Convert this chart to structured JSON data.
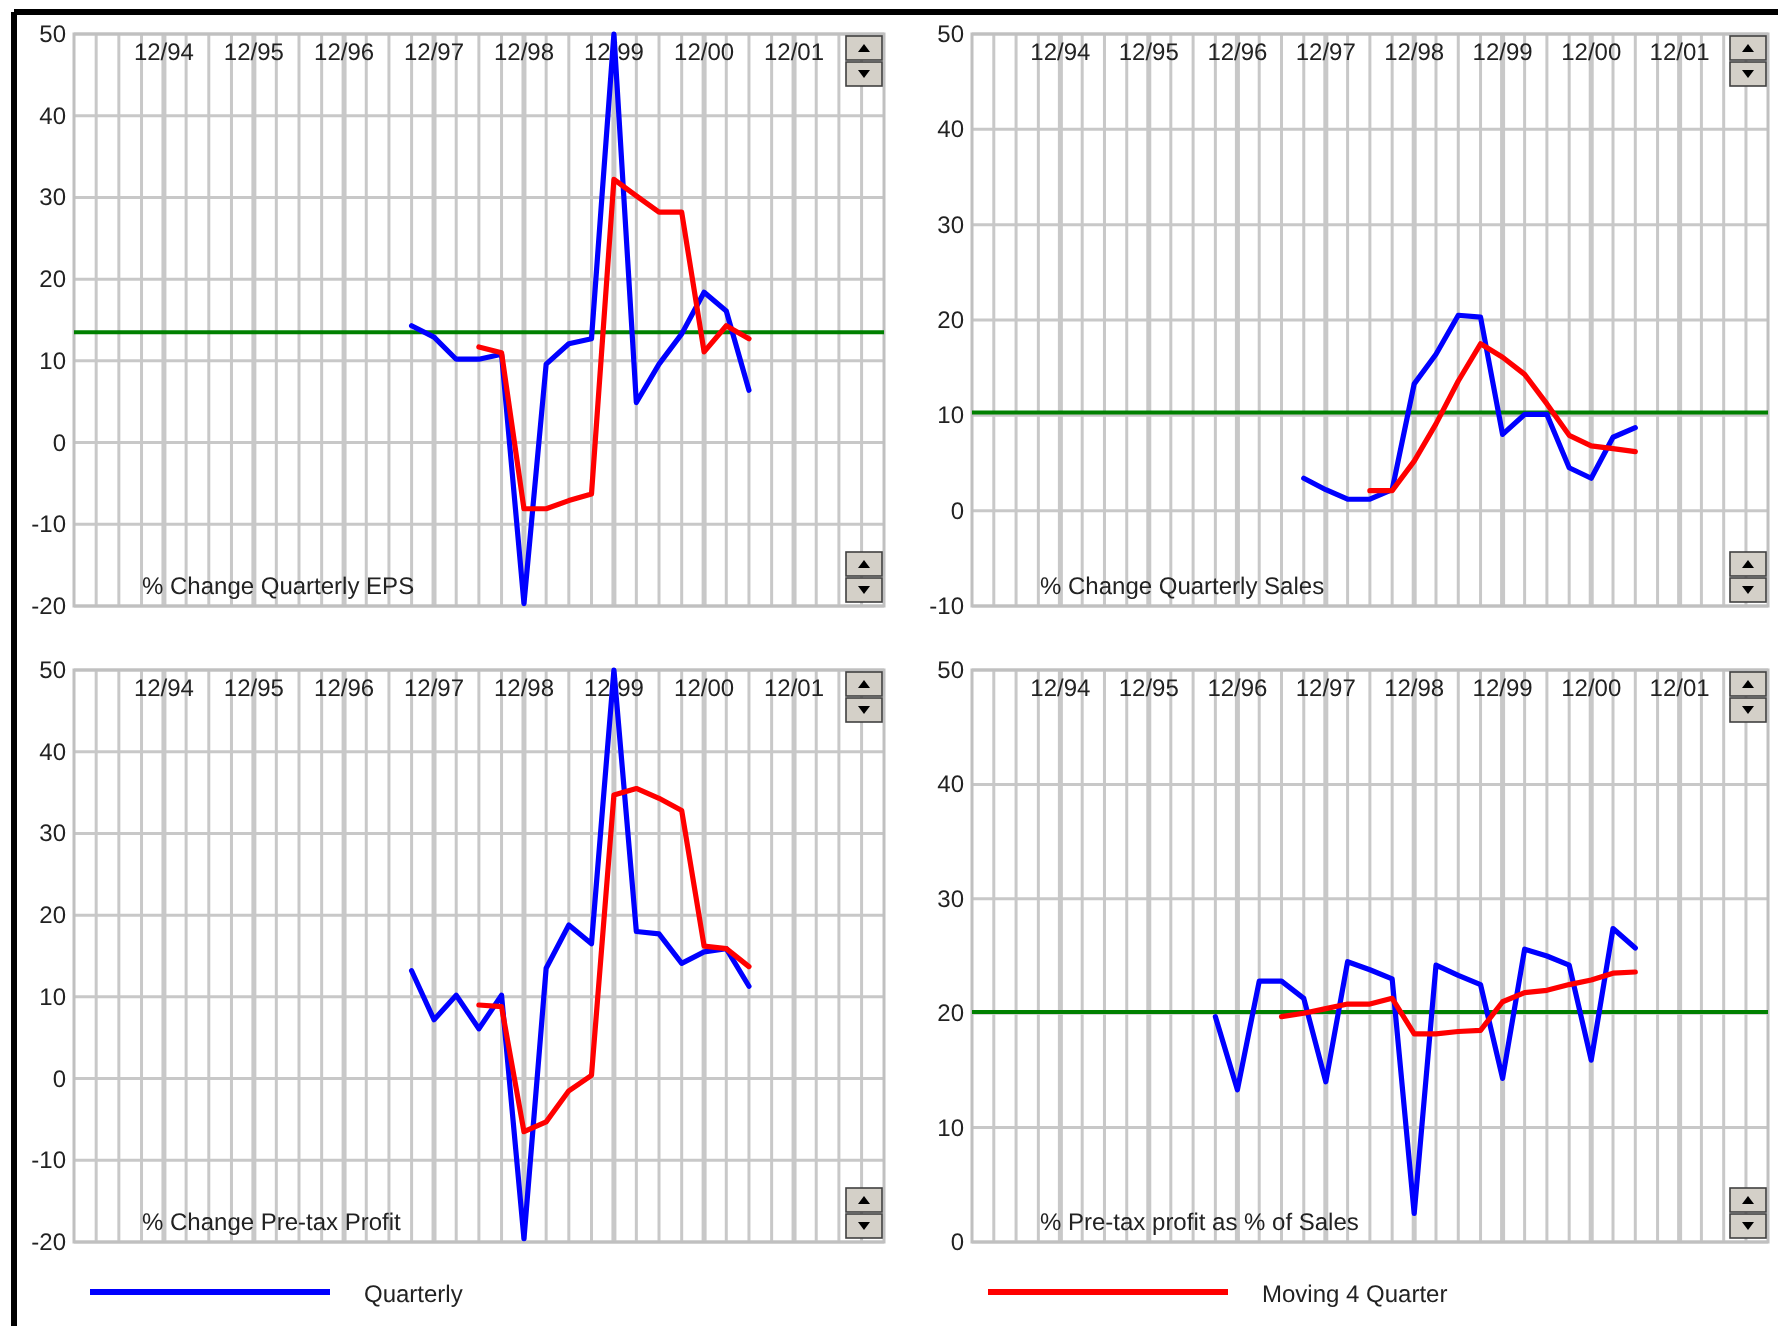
{
  "chart_data": [
    {
      "type": "line",
      "title": "% Change Quarterly EPS",
      "xlim": [
        "1993-12",
        "2002-12"
      ],
      "ylim": [
        -20,
        50
      ],
      "yticks": [
        -20,
        -10,
        0,
        10,
        20,
        30,
        40,
        50
      ],
      "grid": true,
      "xticks": [
        {
          "value": "1994-03",
          "label": null
        },
        {
          "value": "1994-06",
          "label": null
        },
        {
          "value": "1994-09",
          "label": null
        },
        {
          "value": "1994-12",
          "label": "12/94"
        },
        {
          "value": "1995-03",
          "label": null
        },
        {
          "value": "1995-06",
          "label": null
        },
        {
          "value": "1995-09",
          "label": null
        },
        {
          "value": "1995-12",
          "label": "12/95"
        },
        {
          "value": "1996-03",
          "label": null
        },
        {
          "value": "1996-06",
          "label": null
        },
        {
          "value": "1996-09",
          "label": null
        },
        {
          "value": "1996-12",
          "label": "12/96"
        },
        {
          "value": "1997-03",
          "label": null
        },
        {
          "value": "1997-06",
          "label": null
        },
        {
          "value": "1997-09",
          "label": null
        },
        {
          "value": "1997-12",
          "label": "12/97"
        },
        {
          "value": "1998-03",
          "label": null
        },
        {
          "value": "1998-06",
          "label": null
        },
        {
          "value": "1998-09",
          "label": null
        },
        {
          "value": "1998-12",
          "label": "12/98"
        },
        {
          "value": "1999-03",
          "label": null
        },
        {
          "value": "1999-06",
          "label": null
        },
        {
          "value": "1999-09",
          "label": null
        },
        {
          "value": "1999-12",
          "label": "12/99"
        },
        {
          "value": "2000-03",
          "label": null
        },
        {
          "value": "2000-06",
          "label": null
        },
        {
          "value": "2000-09",
          "label": null
        },
        {
          "value": "2000-12",
          "label": "12/00"
        },
        {
          "value": "2001-03",
          "label": null
        },
        {
          "value": "2001-06",
          "label": null
        },
        {
          "value": "2001-09",
          "label": null
        },
        {
          "value": "2001-12",
          "label": "12/01"
        },
        {
          "value": "2002-03",
          "label": null
        },
        {
          "value": "2002-06",
          "label": null
        },
        {
          "value": "2002-09",
          "label": null
        }
      ],
      "ref_lines": [
        {
          "axis": "y",
          "value": 13.5,
          "color": "#008000"
        }
      ],
      "series": [
        {
          "color": "#0000ff",
          "x": [
            "1997-09",
            "1997-12",
            "1998-03",
            "1998-06",
            "1998-09",
            "1998-12",
            "1999-03",
            "1999-06",
            "1999-09",
            "1999-12",
            "2000-03",
            "2000-06",
            "2000-09",
            "2000-12",
            "2001-03",
            "2001-06"
          ],
          "values": [
            14.3,
            12.9,
            10.2,
            10.2,
            10.8,
            -19.7,
            9.6,
            12.1,
            12.7,
            50,
            4.9,
            9.6,
            13.3,
            18.4,
            16.1,
            6.4
          ]
        },
        {
          "color": "#ff0000",
          "x": [
            "1998-06",
            "1998-09",
            "1998-12",
            "1999-03",
            "1999-06",
            "1999-09",
            "1999-12",
            "2000-03",
            "2000-06",
            "2000-09",
            "2000-12",
            "2001-03",
            "2001-06"
          ],
          "values": [
            11.7,
            11,
            -8.1,
            -8.1,
            -7.1,
            -6.3,
            32.2,
            30.2,
            28.2,
            28.2,
            11.1,
            14.3,
            12.7
          ]
        }
      ]
    },
    {
      "type": "line",
      "title": "% Change Quarterly Sales",
      "xlim": [
        "1993-12",
        "2002-12"
      ],
      "ylim": [
        -10,
        50
      ],
      "yticks": [
        -10,
        0,
        10,
        20,
        30,
        40,
        50
      ],
      "grid": true,
      "xticks": [
        {
          "value": "1994-03",
          "label": null
        },
        {
          "value": "1994-06",
          "label": null
        },
        {
          "value": "1994-09",
          "label": null
        },
        {
          "value": "1994-12",
          "label": "12/94"
        },
        {
          "value": "1995-03",
          "label": null
        },
        {
          "value": "1995-06",
          "label": null
        },
        {
          "value": "1995-09",
          "label": null
        },
        {
          "value": "1995-12",
          "label": "12/95"
        },
        {
          "value": "1996-03",
          "label": null
        },
        {
          "value": "1996-06",
          "label": null
        },
        {
          "value": "1996-09",
          "label": null
        },
        {
          "value": "1996-12",
          "label": "12/96"
        },
        {
          "value": "1997-03",
          "label": null
        },
        {
          "value": "1997-06",
          "label": null
        },
        {
          "value": "1997-09",
          "label": null
        },
        {
          "value": "1997-12",
          "label": "12/97"
        },
        {
          "value": "1998-03",
          "label": null
        },
        {
          "value": "1998-06",
          "label": null
        },
        {
          "value": "1998-09",
          "label": null
        },
        {
          "value": "1998-12",
          "label": "12/98"
        },
        {
          "value": "1999-03",
          "label": null
        },
        {
          "value": "1999-06",
          "label": null
        },
        {
          "value": "1999-09",
          "label": null
        },
        {
          "value": "1999-12",
          "label": "12/99"
        },
        {
          "value": "2000-03",
          "label": null
        },
        {
          "value": "2000-06",
          "label": null
        },
        {
          "value": "2000-09",
          "label": null
        },
        {
          "value": "2000-12",
          "label": "12/00"
        },
        {
          "value": "2001-03",
          "label": null
        },
        {
          "value": "2001-06",
          "label": null
        },
        {
          "value": "2001-09",
          "label": null
        },
        {
          "value": "2001-12",
          "label": "12/01"
        },
        {
          "value": "2002-03",
          "label": null
        },
        {
          "value": "2002-06",
          "label": null
        },
        {
          "value": "2002-09",
          "label": null
        }
      ],
      "ref_lines": [
        {
          "axis": "y",
          "value": 10.3,
          "color": "#008000"
        }
      ],
      "series": [
        {
          "color": "#0000ff",
          "x": [
            "1997-09",
            "1997-12",
            "1998-03",
            "1998-06",
            "1998-09",
            "1998-12",
            "1999-03",
            "1999-06",
            "1999-09",
            "1999-12",
            "2000-03",
            "2000-06",
            "2000-09",
            "2000-12",
            "2001-03",
            "2001-06"
          ],
          "values": [
            3.4,
            2.2,
            1.2,
            1.2,
            2.2,
            13.3,
            16.4,
            20.5,
            20.3,
            8,
            10.1,
            10.1,
            4.5,
            3.4,
            7.7,
            8.7
          ]
        },
        {
          "color": "#ff0000",
          "x": [
            "1998-06",
            "1998-09",
            "1998-12",
            "1999-03",
            "1999-06",
            "1999-09",
            "1999-12",
            "2000-03",
            "2000-06",
            "2000-09",
            "2000-12",
            "2001-03",
            "2001-06"
          ],
          "values": [
            2.1,
            2.1,
            5.2,
            9.1,
            13.6,
            17.5,
            16.1,
            14.3,
            11.2,
            7.9,
            6.8,
            6.5,
            6.2
          ]
        }
      ]
    },
    {
      "type": "line",
      "title": "% Change Pre-tax Profit",
      "xlim": [
        "1993-12",
        "2002-12"
      ],
      "ylim": [
        -20,
        50
      ],
      "yticks": [
        -20,
        -10,
        0,
        10,
        20,
        30,
        40,
        50
      ],
      "grid": true,
      "legend": "bottom",
      "xticks": [
        {
          "value": "1994-03",
          "label": null
        },
        {
          "value": "1994-06",
          "label": null
        },
        {
          "value": "1994-09",
          "label": null
        },
        {
          "value": "1994-12",
          "label": "12/94"
        },
        {
          "value": "1995-03",
          "label": null
        },
        {
          "value": "1995-06",
          "label": null
        },
        {
          "value": "1995-09",
          "label": null
        },
        {
          "value": "1995-12",
          "label": "12/95"
        },
        {
          "value": "1996-03",
          "label": null
        },
        {
          "value": "1996-06",
          "label": null
        },
        {
          "value": "1996-09",
          "label": null
        },
        {
          "value": "1996-12",
          "label": "12/96"
        },
        {
          "value": "1997-03",
          "label": null
        },
        {
          "value": "1997-06",
          "label": null
        },
        {
          "value": "1997-09",
          "label": null
        },
        {
          "value": "1997-12",
          "label": "12/97"
        },
        {
          "value": "1998-03",
          "label": null
        },
        {
          "value": "1998-06",
          "label": null
        },
        {
          "value": "1998-09",
          "label": null
        },
        {
          "value": "1998-12",
          "label": "12/98"
        },
        {
          "value": "1999-03",
          "label": null
        },
        {
          "value": "1999-06",
          "label": null
        },
        {
          "value": "1999-09",
          "label": null
        },
        {
          "value": "1999-12",
          "label": "12/99"
        },
        {
          "value": "2000-03",
          "label": null
        },
        {
          "value": "2000-06",
          "label": null
        },
        {
          "value": "2000-09",
          "label": null
        },
        {
          "value": "2000-12",
          "label": "12/00"
        },
        {
          "value": "2001-03",
          "label": null
        },
        {
          "value": "2001-06",
          "label": null
        },
        {
          "value": "2001-09",
          "label": null
        },
        {
          "value": "2001-12",
          "label": "12/01"
        },
        {
          "value": "2002-03",
          "label": null
        },
        {
          "value": "2002-06",
          "label": null
        },
        {
          "value": "2002-09",
          "label": null
        }
      ],
      "series": [
        {
          "name": "Quarterly",
          "color": "#0000ff",
          "x": [
            "1997-09",
            "1997-12",
            "1998-03",
            "1998-06",
            "1998-09",
            "1998-12",
            "1999-03",
            "1999-06",
            "1999-09",
            "1999-12",
            "2000-03",
            "2000-06",
            "2000-09",
            "2000-12",
            "2001-03",
            "2001-06"
          ],
          "values": [
            13.2,
            7.2,
            10.2,
            6.1,
            10.2,
            -19.6,
            13.5,
            18.8,
            16.5,
            50,
            18,
            17.7,
            14.1,
            15.5,
            15.9,
            11.3
          ]
        },
        {
          "color": "#ff0000",
          "x": [
            "1998-06",
            "1998-09",
            "1998-12",
            "1999-03",
            "1999-06",
            "1999-09",
            "1999-12",
            "2000-03",
            "2000-06",
            "2000-09",
            "2000-12",
            "2001-03",
            "2001-06"
          ],
          "values": [
            9,
            8.8,
            -6.5,
            -5.3,
            -1.5,
            0.4,
            34.7,
            35.5,
            34.3,
            32.8,
            16.2,
            15.9,
            13.7
          ]
        }
      ]
    },
    {
      "type": "line",
      "title": "% Pre-tax profit as % of Sales",
      "xlim": [
        "1993-12",
        "2002-12"
      ],
      "ylim": [
        0,
        50
      ],
      "yticks": [
        0,
        10,
        20,
        30,
        40,
        50
      ],
      "grid": true,
      "legend": "bottom",
      "xticks": [
        {
          "value": "1994-03",
          "label": null
        },
        {
          "value": "1994-06",
          "label": null
        },
        {
          "value": "1994-09",
          "label": null
        },
        {
          "value": "1994-12",
          "label": "12/94"
        },
        {
          "value": "1995-03",
          "label": null
        },
        {
          "value": "1995-06",
          "label": null
        },
        {
          "value": "1995-09",
          "label": null
        },
        {
          "value": "1995-12",
          "label": "12/95"
        },
        {
          "value": "1996-03",
          "label": null
        },
        {
          "value": "1996-06",
          "label": null
        },
        {
          "value": "1996-09",
          "label": null
        },
        {
          "value": "1996-12",
          "label": "12/96"
        },
        {
          "value": "1997-03",
          "label": null
        },
        {
          "value": "1997-06",
          "label": null
        },
        {
          "value": "1997-09",
          "label": null
        },
        {
          "value": "1997-12",
          "label": "12/97"
        },
        {
          "value": "1998-03",
          "label": null
        },
        {
          "value": "1998-06",
          "label": null
        },
        {
          "value": "1998-09",
          "label": null
        },
        {
          "value": "1998-12",
          "label": "12/98"
        },
        {
          "value": "1999-03",
          "label": null
        },
        {
          "value": "1999-06",
          "label": null
        },
        {
          "value": "1999-09",
          "label": null
        },
        {
          "value": "1999-12",
          "label": "12/99"
        },
        {
          "value": "2000-03",
          "label": null
        },
        {
          "value": "2000-06",
          "label": null
        },
        {
          "value": "2000-09",
          "label": null
        },
        {
          "value": "2000-12",
          "label": "12/00"
        },
        {
          "value": "2001-03",
          "label": null
        },
        {
          "value": "2001-06",
          "label": null
        },
        {
          "value": "2001-09",
          "label": null
        },
        {
          "value": "2001-12",
          "label": "12/01"
        },
        {
          "value": "2002-03",
          "label": null
        },
        {
          "value": "2002-06",
          "label": null
        },
        {
          "value": "2002-09",
          "label": null
        }
      ],
      "ref_lines": [
        {
          "axis": "y",
          "value": 20.1,
          "color": "#008000"
        }
      ],
      "series": [
        {
          "color": "#0000ff",
          "x": [
            "1996-09",
            "1996-12",
            "1997-03",
            "1997-06",
            "1997-09",
            "1997-12",
            "1998-03",
            "1998-06",
            "1998-09",
            "1998-12",
            "1999-03",
            "1999-06",
            "1999-09",
            "1999-12",
            "2000-03",
            "2000-06",
            "2000-09",
            "2000-12",
            "2001-03",
            "2001-06"
          ],
          "values": [
            19.7,
            13.3,
            22.8,
            22.8,
            21.3,
            14,
            24.5,
            23.8,
            23,
            2.5,
            24.2,
            23.3,
            22.5,
            14.3,
            25.6,
            25,
            24.2,
            15.9,
            27.4,
            25.7
          ]
        },
        {
          "name": "Moving 4 Quarter",
          "color": "#ff0000",
          "x": [
            "1997-06",
            "1997-09",
            "1997-12",
            "1998-03",
            "1998-06",
            "1998-09",
            "1998-12",
            "1999-03",
            "1999-06",
            "1999-09",
            "1999-12",
            "2000-03",
            "2000-06",
            "2000-09",
            "2000-12",
            "2001-03",
            "2001-06"
          ],
          "values": [
            19.7,
            20,
            20.4,
            20.8,
            20.8,
            21.3,
            18.2,
            18.2,
            18.4,
            18.5,
            21,
            21.8,
            22,
            22.5,
            22.9,
            23.5,
            23.6
          ]
        }
      ]
    }
  ]
}
